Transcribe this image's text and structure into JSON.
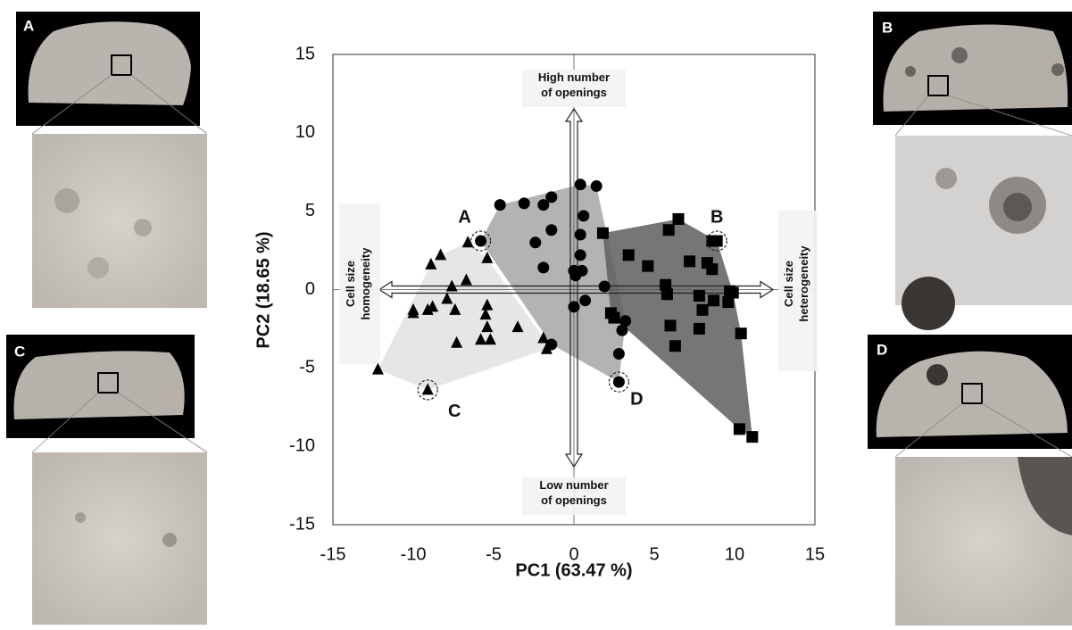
{
  "chart_data": {
    "type": "scatter",
    "xlabel": "PC1 (63.47 %)",
    "ylabel": "PC2 (18.65 %)",
    "xlim": [
      -15,
      15
    ],
    "ylim": [
      -15,
      15
    ],
    "xticks": [
      -15,
      -10,
      -5,
      0,
      5,
      10,
      15
    ],
    "yticks": [
      -15,
      -10,
      -5,
      0,
      5,
      10,
      15
    ],
    "series": [
      {
        "marker": "triangle",
        "color": "#000000",
        "hull_color": "#e2e2e2",
        "x": [
          -8.3,
          -8.9,
          -6.6,
          -5.4,
          -7.6,
          -6.7,
          -7.9,
          -10.0,
          -10.0,
          -8.8,
          -9.1,
          -7.4,
          -5.4,
          -5.5,
          -3.5,
          -7.3,
          -5.8,
          -5.2,
          -5.4,
          -1.9,
          -1.7,
          -12.2,
          -9.1
        ],
        "y": [
          2.2,
          1.6,
          3.0,
          2.0,
          0.2,
          0.6,
          -0.6,
          -1.3,
          -1.5,
          -1.1,
          -1.3,
          -1.3,
          -1.0,
          -1.6,
          -2.4,
          -3.4,
          -3.2,
          -3.2,
          -2.4,
          -3.1,
          -3.8,
          -5.1,
          -6.4
        ]
      },
      {
        "marker": "circle",
        "color": "#000000",
        "hull_color": "#a6a6a6",
        "x": [
          -5.8,
          -4.6,
          -3.1,
          -1.9,
          -1.4,
          -2.4,
          -1.4,
          -1.9,
          0.0,
          0.1,
          0.5,
          0.4,
          1.4,
          0.6,
          0.4,
          0.4,
          0.7,
          1.9,
          3.2,
          3.0,
          0.0,
          -1.4,
          2.8,
          2.8
        ],
        "y": [
          3.1,
          5.4,
          5.5,
          5.4,
          5.9,
          3.0,
          3.8,
          1.4,
          1.2,
          0.9,
          1.2,
          6.7,
          6.6,
          4.7,
          3.5,
          2.2,
          -0.7,
          0.2,
          -2.0,
          -2.6,
          -1.1,
          -3.5,
          -4.1,
          -5.9
        ]
      },
      {
        "marker": "square",
        "color": "#000000",
        "hull_color": "#5e5e5e",
        "x": [
          1.8,
          3.4,
          4.6,
          5.9,
          6.5,
          7.2,
          8.3,
          8.6,
          8.6,
          8.9,
          5.7,
          5.8,
          7.8,
          8.0,
          8.7,
          9.7,
          9.9,
          9.6,
          2.3,
          2.5,
          6.0,
          7.8,
          6.3,
          10.4,
          10.3,
          11.1
        ],
        "y": [
          3.6,
          2.2,
          1.5,
          3.8,
          4.5,
          1.8,
          1.7,
          1.3,
          3.1,
          3.1,
          0.3,
          -0.3,
          -0.4,
          -1.3,
          -0.7,
          -0.1,
          -0.2,
          -0.8,
          -1.5,
          -1.8,
          -2.3,
          -2.5,
          -3.6,
          -2.8,
          -8.9,
          -9.4
        ]
      }
    ],
    "point_labels": [
      "A",
      "B",
      "C",
      "D"
    ],
    "axis_annotations": [
      [
        "High number",
        "of openings"
      ],
      [
        "Low number",
        "of openings"
      ],
      [
        "Cell size",
        "homogeneity"
      ],
      [
        "Cell size",
        "heterogeneity"
      ]
    ]
  },
  "panels": [
    "A",
    "B",
    "C",
    "D"
  ]
}
